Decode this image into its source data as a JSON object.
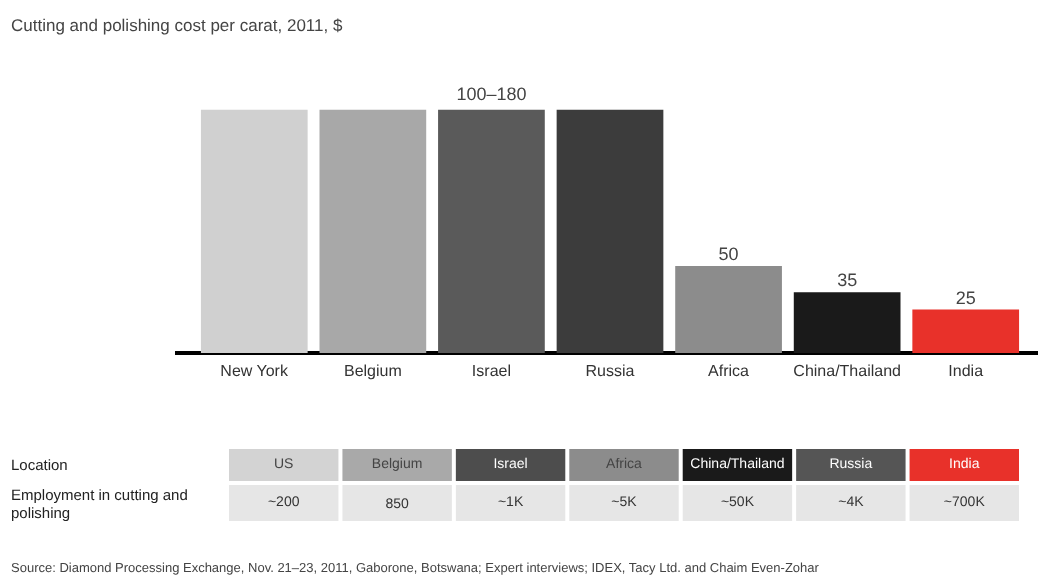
{
  "chart_data": [
    {
      "type": "bar",
      "title": "Cutting and polishing cost per carat, 2011, $",
      "categories": [
        "New York",
        "Belgium",
        "Israel",
        "Russia",
        "Africa",
        "China/Thailand",
        "India"
      ],
      "values": [
        140,
        140,
        140,
        140,
        50,
        35,
        25
      ],
      "value_labels": [
        null,
        null,
        "100–180",
        null,
        "50",
        "35",
        "25"
      ],
      "colors": [
        "#d0d0d0",
        "#a8a8a8",
        "#5a5a5a",
        "#3c3c3c",
        "#8c8c8c",
        "#1a1a1a",
        "#e8312a"
      ],
      "tick_labels": false,
      "annotations": [
        "Source: Diamond Processing Exchange, Nov. 21–23, 2011, Gaborone, Botswana; Expert interviews; IDEX, Tacy Ltd. and Chaim Even-Zohar"
      ]
    },
    {
      "type": "other",
      "categories": [
        "US",
        "Belgium",
        "Israel",
        "Africa",
        "China/Thailand",
        "Russia",
        "India"
      ],
      "colors": [
        "#d3d3d3",
        "#a9a9a9",
        "#4d4d4d",
        "#8c8c8c",
        "#1a1a1a",
        "#555555",
        "#e8312a"
      ],
      "value_labels": [
        "~200",
        "850",
        "~1K",
        "~5K",
        "~50K",
        "~4K",
        "~700K"
      ],
      "annotations": [
        "Location",
        "Employment in cutting and polishing"
      ]
    }
  ]
}
